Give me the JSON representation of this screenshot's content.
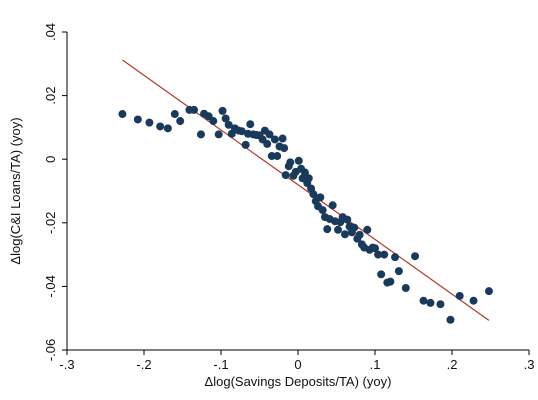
{
  "chart_data": {
    "type": "scatter",
    "title": "",
    "xlabel": "Δlog(Savings Deposits/TA) (yoy)",
    "ylabel": "Δlog(C&I Loans/TA) (yoy)",
    "xlim": [
      -0.3,
      0.3
    ],
    "ylim": [
      -0.06,
      0.04
    ],
    "x_ticks": [
      -0.3,
      -0.2,
      -0.1,
      0,
      0.1,
      0.2,
      0.3
    ],
    "x_tick_labels": [
      "-.3",
      "-.2",
      "-.1",
      "0",
      ".1",
      ".2",
      ".3"
    ],
    "y_ticks": [
      -0.06,
      -0.04,
      -0.02,
      0,
      0.02,
      0.04
    ],
    "y_tick_labels": [
      "-.06",
      "-.04",
      "-.02",
      "0",
      ".02",
      ".04"
    ],
    "grid": false,
    "marker_color": "#1a3a5c",
    "fit_line_color": "#b03a2e",
    "fit_line": {
      "x": [
        -0.228,
        0.248
      ],
      "y": [
        0.0312,
        -0.0507
      ]
    },
    "points": [
      {
        "x": -0.228,
        "y": 0.0142
      },
      {
        "x": -0.208,
        "y": 0.0125
      },
      {
        "x": -0.193,
        "y": 0.0115
      },
      {
        "x": -0.179,
        "y": 0.0103
      },
      {
        "x": -0.169,
        "y": 0.0097
      },
      {
        "x": -0.16,
        "y": 0.0142
      },
      {
        "x": -0.153,
        "y": 0.012
      },
      {
        "x": -0.141,
        "y": 0.0155
      },
      {
        "x": -0.135,
        "y": 0.0155
      },
      {
        "x": -0.126,
        "y": 0.0078
      },
      {
        "x": -0.122,
        "y": 0.0143
      },
      {
        "x": -0.116,
        "y": 0.0135
      },
      {
        "x": -0.11,
        "y": 0.012
      },
      {
        "x": -0.103,
        "y": 0.0078
      },
      {
        "x": -0.098,
        "y": 0.0152
      },
      {
        "x": -0.094,
        "y": 0.0128
      },
      {
        "x": -0.09,
        "y": 0.0108
      },
      {
        "x": -0.086,
        "y": 0.008
      },
      {
        "x": -0.082,
        "y": 0.0097
      },
      {
        "x": -0.077,
        "y": 0.009
      },
      {
        "x": -0.073,
        "y": 0.0088
      },
      {
        "x": -0.068,
        "y": 0.0045
      },
      {
        "x": -0.065,
        "y": 0.008
      },
      {
        "x": -0.062,
        "y": 0.011
      },
      {
        "x": -0.058,
        "y": 0.0078
      },
      {
        "x": -0.054,
        "y": 0.0076
      },
      {
        "x": -0.05,
        "y": 0.0075
      },
      {
        "x": -0.046,
        "y": 0.0062
      },
      {
        "x": -0.043,
        "y": 0.009
      },
      {
        "x": -0.04,
        "y": 0.0048
      },
      {
        "x": -0.037,
        "y": 0.0078
      },
      {
        "x": -0.034,
        "y": 0.001
      },
      {
        "x": -0.03,
        "y": 0.0062
      },
      {
        "x": -0.027,
        "y": 0.001
      },
      {
        "x": -0.024,
        "y": 0.004
      },
      {
        "x": -0.02,
        "y": 0.0065
      },
      {
        "x": -0.018,
        "y": 0.0035
      },
      {
        "x": -0.016,
        "y": -0.005
      },
      {
        "x": -0.012,
        "y": -0.0022
      },
      {
        "x": -0.01,
        "y": -0.001
      },
      {
        "x": -0.006,
        "y": -0.0052
      },
      {
        "x": -0.003,
        "y": -0.004
      },
      {
        "x": 0.001,
        "y": -0.0005
      },
      {
        "x": 0.004,
        "y": -0.003
      },
      {
        "x": 0.006,
        "y": -0.006
      },
      {
        "x": 0.009,
        "y": -0.0042
      },
      {
        "x": 0.012,
        "y": -0.0075
      },
      {
        "x": 0.014,
        "y": -0.006
      },
      {
        "x": 0.017,
        "y": -0.0092
      },
      {
        "x": 0.02,
        "y": -0.011
      },
      {
        "x": 0.023,
        "y": -0.0132
      },
      {
        "x": 0.026,
        "y": -0.0148
      },
      {
        "x": 0.029,
        "y": -0.012
      },
      {
        "x": 0.032,
        "y": -0.016
      },
      {
        "x": 0.035,
        "y": -0.0182
      },
      {
        "x": 0.038,
        "y": -0.022
      },
      {
        "x": 0.041,
        "y": -0.0188
      },
      {
        "x": 0.045,
        "y": -0.0145
      },
      {
        "x": 0.048,
        "y": -0.0195
      },
      {
        "x": 0.052,
        "y": -0.0222
      },
      {
        "x": 0.055,
        "y": -0.0198
      },
      {
        "x": 0.058,
        "y": -0.0182
      },
      {
        "x": 0.061,
        "y": -0.0236
      },
      {
        "x": 0.064,
        "y": -0.019
      },
      {
        "x": 0.067,
        "y": -0.0212
      },
      {
        "x": 0.07,
        "y": -0.023
      },
      {
        "x": 0.073,
        "y": -0.0215
      },
      {
        "x": 0.077,
        "y": -0.025
      },
      {
        "x": 0.08,
        "y": -0.0238
      },
      {
        "x": 0.083,
        "y": -0.0268
      },
      {
        "x": 0.086,
        "y": -0.0278
      },
      {
        "x": 0.09,
        "y": -0.0222
      },
      {
        "x": 0.093,
        "y": -0.0285
      },
      {
        "x": 0.097,
        "y": -0.0278
      },
      {
        "x": 0.1,
        "y": -0.028
      },
      {
        "x": 0.104,
        "y": -0.03
      },
      {
        "x": 0.108,
        "y": -0.0362
      },
      {
        "x": 0.112,
        "y": -0.03
      },
      {
        "x": 0.116,
        "y": -0.0388
      },
      {
        "x": 0.12,
        "y": -0.0385
      },
      {
        "x": 0.126,
        "y": -0.0308
      },
      {
        "x": 0.131,
        "y": -0.0352
      },
      {
        "x": 0.14,
        "y": -0.0405
      },
      {
        "x": 0.152,
        "y": -0.0305
      },
      {
        "x": 0.163,
        "y": -0.0445
      },
      {
        "x": 0.172,
        "y": -0.0452
      },
      {
        "x": 0.185,
        "y": -0.0456
      },
      {
        "x": 0.198,
        "y": -0.0505
      },
      {
        "x": 0.21,
        "y": -0.043
      },
      {
        "x": 0.228,
        "y": -0.0445
      },
      {
        "x": 0.248,
        "y": -0.0415
      }
    ]
  }
}
